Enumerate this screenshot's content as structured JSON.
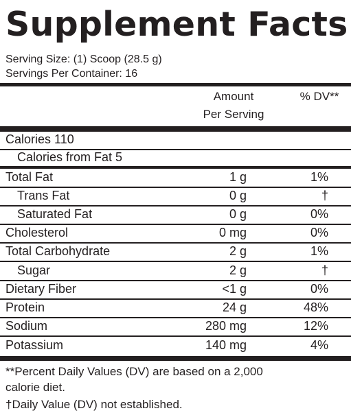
{
  "title": "Supplement Facts",
  "serving_size": "Serving Size: (1) Scoop (28.5 g)",
  "servings_per_container": "Servings Per Container: 16",
  "header": {
    "amount_line1": "Amount",
    "amount_line2": "Per Serving",
    "dv": "% DV**"
  },
  "calories": "Calories  110",
  "calories_from_fat": "Calories from Fat  5",
  "nutrients": [
    {
      "name": "Total Fat",
      "amount": "1 g",
      "dv": "1%"
    },
    {
      "name": "Trans Fat",
      "amount": "0 g",
      "dv": "†"
    },
    {
      "name": "Saturated Fat",
      "amount": "0 g",
      "dv": "0%"
    },
    {
      "name": "Cholesterol",
      "amount": "0 mg",
      "dv": "0%"
    },
    {
      "name": "Total Carbohydrate",
      "amount": "2 g",
      "dv": "1%"
    },
    {
      "name": "Sugar",
      "amount": "2 g",
      "dv": "†"
    },
    {
      "name": "Dietary Fiber",
      "amount": "<1 g",
      "dv": "0%"
    },
    {
      "name": "Protein",
      "amount": "24 g",
      "dv": "48%"
    },
    {
      "name": "Sodium",
      "amount": "280 mg",
      "dv": "12%"
    },
    {
      "name": "Potassium",
      "amount": "140 mg",
      "dv": "4%"
    }
  ],
  "footnote_line1": "**Percent Daily Values (DV) are based on a 2,000",
  "footnote_line2": "calorie diet.",
  "footnote_dagger": "†Daily Value (DV) not established."
}
